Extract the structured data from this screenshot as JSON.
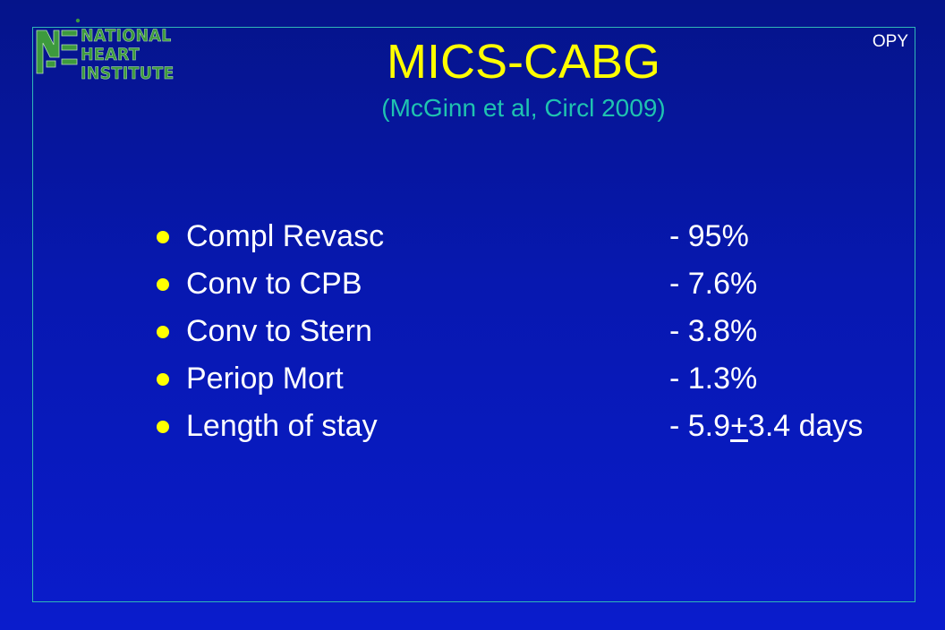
{
  "logo": {
    "line1": "NATIONAL",
    "line2": "HEART",
    "line3": "INSTITUTE"
  },
  "corner_label": "OPY",
  "title": "MICS-CABG",
  "subtitle": "(McGinn et al, Circl 2009)",
  "bullets": [
    {
      "label": "Compl Revasc",
      "value": "- 95%"
    },
    {
      "label": "Conv to CPB",
      "value": "- 7.6%"
    },
    {
      "label": "Conv to Stern",
      "value": "- 3.8%"
    },
    {
      "label": "Periop Mort",
      "value": "- 1.3%"
    },
    {
      "label": "Length of stay",
      "value_prefix": "- 5.9",
      "value_pm": "+",
      "value_suffix": "3.4 days"
    }
  ],
  "colors": {
    "background": "#0718b0",
    "title": "#ffff00",
    "subtitle": "#1fc3b0",
    "bullet": "#ffff00",
    "text": "#ffffff",
    "frame": "#2fb7b7",
    "logo": "#3d9a3d"
  }
}
